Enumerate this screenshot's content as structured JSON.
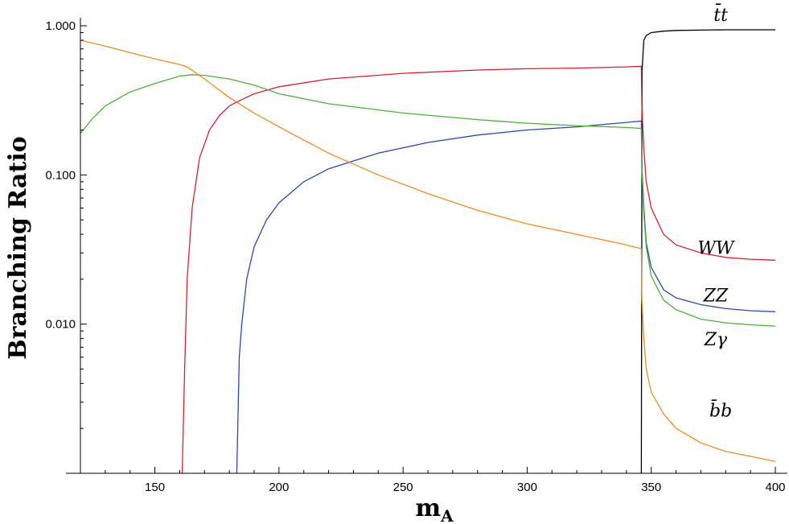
{
  "chart_data": {
    "type": "line",
    "xlabel_main": "m",
    "xlabel_sub": "A",
    "ylabel": "Branching Ratio",
    "xlim": [
      120,
      400
    ],
    "ylim": [
      0.001,
      1.0
    ],
    "yscale": "log",
    "x_ticks": [
      150,
      200,
      250,
      300,
      350,
      400
    ],
    "x_tick_labels": [
      "150",
      "200",
      "250",
      "300",
      "350",
      "400"
    ],
    "y_ticks": [
      0.01,
      0.1,
      1.0
    ],
    "y_tick_labels": [
      "0.010",
      "0.100",
      "1.000"
    ],
    "grid": false,
    "legend": "none",
    "series": [
      {
        "name": "t̄t",
        "color": "#000000",
        "x": [
          346,
          346.3,
          347,
          348,
          350,
          355,
          360,
          370,
          380,
          390,
          400
        ],
        "y": [
          0.001,
          0.5,
          0.8,
          0.86,
          0.9,
          0.92,
          0.93,
          0.935,
          0.94,
          0.94,
          0.94
        ]
      },
      {
        "name": "WW",
        "color": "#d62031",
        "x": [
          161,
          162,
          163,
          165,
          168,
          172,
          176,
          180,
          185,
          190,
          200,
          220,
          250,
          280,
          300,
          320,
          340,
          346,
          346.2,
          347,
          348,
          350,
          355,
          360,
          370,
          380,
          390,
          400
        ],
        "y": [
          0.001,
          0.005,
          0.02,
          0.06,
          0.13,
          0.2,
          0.25,
          0.29,
          0.32,
          0.35,
          0.39,
          0.44,
          0.48,
          0.505,
          0.515,
          0.52,
          0.53,
          0.535,
          0.3,
          0.15,
          0.09,
          0.06,
          0.04,
          0.034,
          0.03,
          0.028,
          0.0272,
          0.0268
        ]
      },
      {
        "name": "ZZ",
        "color": "#2b4aa4",
        "x": [
          183,
          184,
          185,
          187,
          190,
          195,
          200,
          210,
          220,
          240,
          260,
          280,
          300,
          320,
          340,
          346,
          346.2,
          347,
          348,
          350,
          355,
          360,
          370,
          380,
          390,
          400
        ],
        "y": [
          0.001,
          0.006,
          0.01,
          0.02,
          0.033,
          0.05,
          0.065,
          0.09,
          0.11,
          0.14,
          0.165,
          0.185,
          0.2,
          0.21,
          0.225,
          0.23,
          0.12,
          0.06,
          0.035,
          0.024,
          0.017,
          0.015,
          0.0135,
          0.0127,
          0.0123,
          0.0121
        ]
      },
      {
        "name": "Zγ",
        "color": "#4caf3a",
        "x": [
          120,
          125,
          130,
          140,
          150,
          160,
          165,
          170,
          180,
          190,
          200,
          220,
          250,
          280,
          300,
          320,
          340,
          346,
          346.2,
          347,
          348,
          350,
          355,
          360,
          370,
          380,
          390,
          400
        ],
        "y": [
          0.19,
          0.24,
          0.29,
          0.36,
          0.41,
          0.46,
          0.47,
          0.465,
          0.44,
          0.4,
          0.35,
          0.3,
          0.26,
          0.235,
          0.222,
          0.214,
          0.208,
          0.205,
          0.11,
          0.055,
          0.033,
          0.021,
          0.0145,
          0.0125,
          0.0108,
          0.0102,
          0.0099,
          0.0097
        ]
      },
      {
        "name": "b̄b",
        "color": "#f08a24",
        "x": [
          120,
          130,
          140,
          150,
          160,
          163,
          170,
          180,
          190,
          200,
          220,
          240,
          260,
          280,
          300,
          320,
          340,
          346,
          346.2,
          347,
          348,
          350,
          355,
          360,
          370,
          380,
          390,
          400
        ],
        "y": [
          0.8,
          0.73,
          0.66,
          0.6,
          0.55,
          0.53,
          0.44,
          0.33,
          0.26,
          0.21,
          0.14,
          0.1,
          0.075,
          0.058,
          0.047,
          0.04,
          0.034,
          0.032,
          0.015,
          0.008,
          0.005,
          0.0035,
          0.0025,
          0.002,
          0.0016,
          0.0014,
          0.0013,
          0.0012
        ]
      }
    ],
    "series_labels": [
      {
        "name": "t̄t",
        "at_x": 378,
        "at_y": 1.08
      },
      {
        "name": "WW",
        "at_x": 376,
        "at_y": 0.0295
      },
      {
        "name": "ZZ",
        "at_x": 376,
        "at_y": 0.0142
      },
      {
        "name": "Zγ",
        "at_x": 376,
        "at_y": 0.0072
      },
      {
        "name": "b̄b",
        "at_x": 378,
        "at_y": 0.0024
      }
    ]
  }
}
